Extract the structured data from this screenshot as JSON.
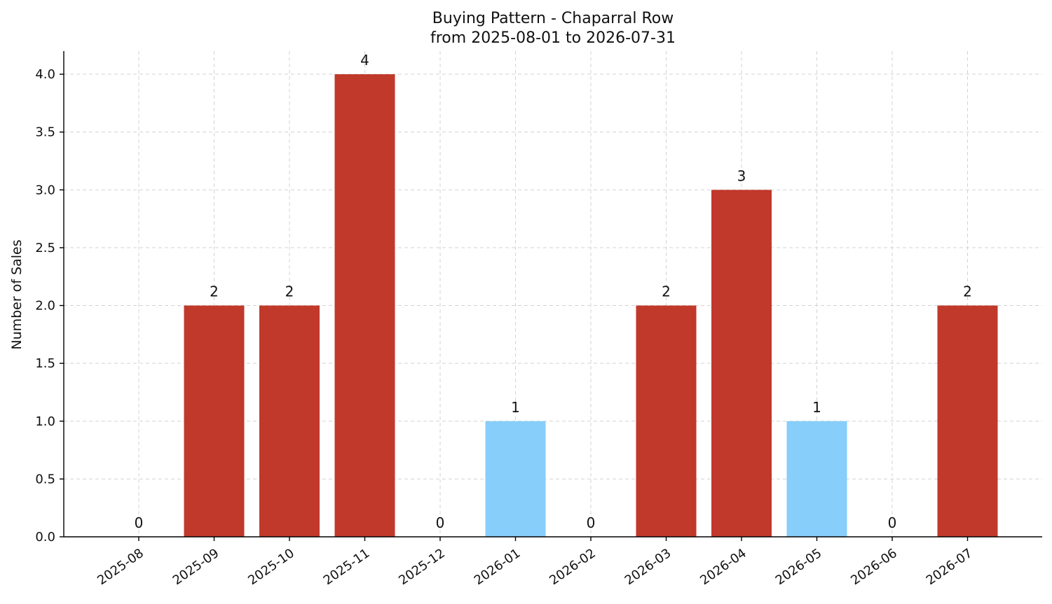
{
  "chart_data": {
    "type": "bar",
    "title": "Buying Pattern - Chaparral Row",
    "subtitle": "from 2025-08-01 to 2026-07-31",
    "xlabel": "",
    "ylabel": "Number of Sales",
    "categories": [
      "2025-08",
      "2025-09",
      "2025-10",
      "2025-11",
      "2025-12",
      "2026-01",
      "2026-02",
      "2026-03",
      "2026-04",
      "2026-05",
      "2026-06",
      "2026-07"
    ],
    "values": [
      0,
      2,
      2,
      4,
      0,
      1,
      0,
      2,
      3,
      1,
      0,
      2
    ],
    "bar_colors": [
      "#c0392b",
      "#c0392b",
      "#c0392b",
      "#c0392b",
      "#c0392b",
      "#87cefa",
      "#c0392b",
      "#c0392b",
      "#c0392b",
      "#87cefa",
      "#c0392b",
      "#c0392b"
    ],
    "ylim": [
      0,
      4.2
    ],
    "yticks": [
      "0.0",
      "0.5",
      "1.0",
      "1.5",
      "2.0",
      "2.5",
      "3.0",
      "3.5",
      "4.0"
    ],
    "grid": true,
    "legend": "none"
  }
}
